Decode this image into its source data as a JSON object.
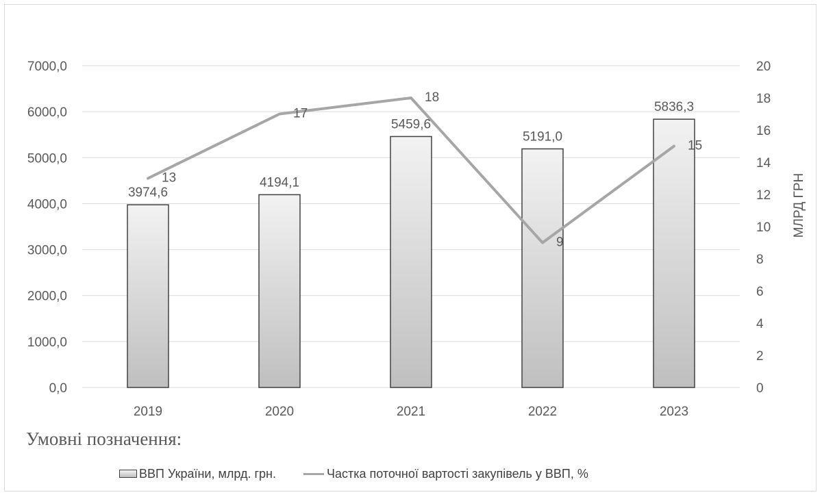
{
  "chart_data": {
    "type": "bar",
    "categories": [
      "2019",
      "2020",
      "2021",
      "2022",
      "2023"
    ],
    "series": [
      {
        "name": "ВВП України, млрд. грн.",
        "kind": "bar",
        "axis": "left",
        "values": [
          3974.6,
          4194.1,
          5459.6,
          5191.0,
          5836.3
        ],
        "labels": [
          "3974,6",
          "4194,1",
          "5459,6",
          "5191,0",
          "5836,3"
        ]
      },
      {
        "name": "Частка поточної вартості закупівель у ВВП, %",
        "kind": "line",
        "axis": "right",
        "values": [
          13,
          17,
          18,
          9,
          15
        ],
        "labels": [
          "13",
          "17",
          "18",
          "9",
          "15"
        ]
      }
    ],
    "left_axis": {
      "ylim": [
        0,
        7000
      ],
      "ticks": [
        "0,0",
        "1000,0",
        "2000,0",
        "3000,0",
        "4000,0",
        "5000,0",
        "6000,0",
        "7000,0"
      ]
    },
    "right_axis": {
      "ylim": [
        0,
        20
      ],
      "ticks": [
        "0",
        "2",
        "4",
        "6",
        "8",
        "10",
        "12",
        "14",
        "16",
        "18",
        "20"
      ],
      "label": "МЛРД ГРН"
    },
    "grid": true,
    "legend_heading": "Умовні позначення:",
    "legend_position": "bottom",
    "colors": {
      "bar_top": "#f2f2f2",
      "bar_bottom": "#bfbfbf",
      "bar_border": "#404040",
      "line": "#a6a6a6",
      "grid": "#d9d9d9",
      "text": "#595959"
    }
  }
}
